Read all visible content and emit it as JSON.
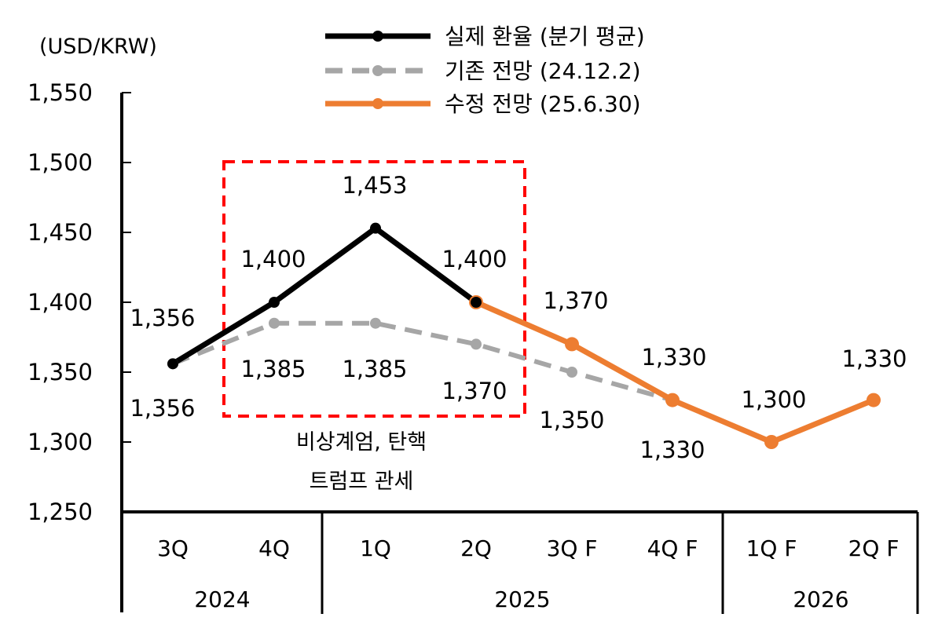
{
  "chart_data": {
    "type": "line",
    "unit_label": "(USD/KRW)",
    "y_axis": {
      "min": 1250,
      "max": 1550,
      "ticks": [
        "1,250",
        "1,300",
        "1,350",
        "1,400",
        "1,450",
        "1,500",
        "1,550"
      ]
    },
    "categories": [
      "3Q",
      "4Q",
      "1Q",
      "2Q",
      "3Q F",
      "4Q F",
      "1Q F",
      "2Q F"
    ],
    "years": [
      "2024",
      "2025",
      "2026"
    ],
    "series": [
      {
        "name": "실제 환율 (분기 평균)",
        "color": "#000000",
        "style": "solid",
        "values": [
          1356,
          1400,
          1453,
          1400,
          null,
          null,
          null,
          null
        ],
        "labels": [
          "1,356",
          "1,400",
          "1,453",
          "1,400",
          null,
          null,
          null,
          null
        ]
      },
      {
        "name": "기존 전망 (24.12.2)",
        "color": "#a6a6a6",
        "style": "dashed",
        "values": [
          1356,
          1385,
          1385,
          1370,
          1350,
          1330,
          null,
          null
        ],
        "labels": [
          "1,356",
          "1,385",
          "1,385",
          "1,370",
          "1,350",
          "1,330",
          null,
          null
        ]
      },
      {
        "name": "수정 전망 (25.6.30)",
        "color": "#ed7d31",
        "style": "solid",
        "values": [
          null,
          null,
          null,
          1400,
          1370,
          1330,
          1300,
          1330
        ],
        "labels": [
          null,
          null,
          null,
          null,
          "1,370",
          "1,330",
          "1,300",
          "1,330"
        ]
      }
    ],
    "highlight_box": {
      "color": "#ff0000",
      "style": "dashed",
      "notes": [
        "비상계엄, 탄핵",
        "트럼프 관세"
      ]
    },
    "grid": false,
    "legend_position": "top"
  }
}
